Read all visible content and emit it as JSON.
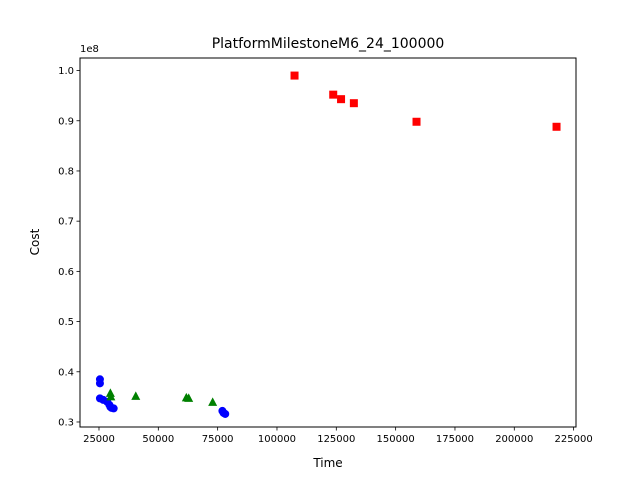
{
  "chart_data": {
    "type": "scatter",
    "title": "PlatformMilestoneM6_24_100000",
    "xlabel": "Time",
    "ylabel": "Cost",
    "y_offset_label": "1e8",
    "y_multiplier": 100000000,
    "xlim": [
      17000,
      226000
    ],
    "ylim": [
      0.29,
      1.025
    ],
    "x_ticks": [
      25000,
      50000,
      75000,
      100000,
      125000,
      150000,
      175000,
      200000,
      225000
    ],
    "x_tick_labels": [
      "25000",
      "50000",
      "75000",
      "100000",
      "125000",
      "150000",
      "175000",
      "200000",
      "225000"
    ],
    "y_ticks": [
      0.3,
      0.4,
      0.5,
      0.6,
      0.7,
      0.8,
      0.9,
      1.0
    ],
    "y_tick_labels": [
      "0.3",
      "0.4",
      "0.5",
      "0.6",
      "0.7",
      "0.8",
      "0.9",
      "1.0"
    ],
    "grid": false,
    "legend": "none",
    "series": [
      {
        "color": "#0000ff",
        "marker": "circle",
        "points": [
          [
            25400,
            0.385
          ],
          [
            25400,
            0.377
          ],
          [
            25400,
            0.347
          ],
          [
            26800,
            0.344
          ],
          [
            28500,
            0.34
          ],
          [
            29400,
            0.334
          ],
          [
            29800,
            0.33
          ],
          [
            30300,
            0.328
          ],
          [
            31200,
            0.327
          ],
          [
            77000,
            0.322
          ],
          [
            77500,
            0.318
          ],
          [
            78200,
            0.316
          ]
        ]
      },
      {
        "color": "#008000",
        "marker": "triangle",
        "points": [
          [
            29800,
            0.357
          ],
          [
            30000,
            0.35
          ],
          [
            40500,
            0.351
          ],
          [
            61800,
            0.348
          ],
          [
            62800,
            0.347
          ],
          [
            72900,
            0.339
          ]
        ]
      },
      {
        "color": "#ff0000",
        "marker": "square",
        "points": [
          [
            107400,
            0.99
          ],
          [
            123700,
            0.952
          ],
          [
            127000,
            0.943
          ],
          [
            132400,
            0.935
          ],
          [
            158800,
            0.898
          ],
          [
            217800,
            0.888
          ]
        ]
      }
    ]
  }
}
